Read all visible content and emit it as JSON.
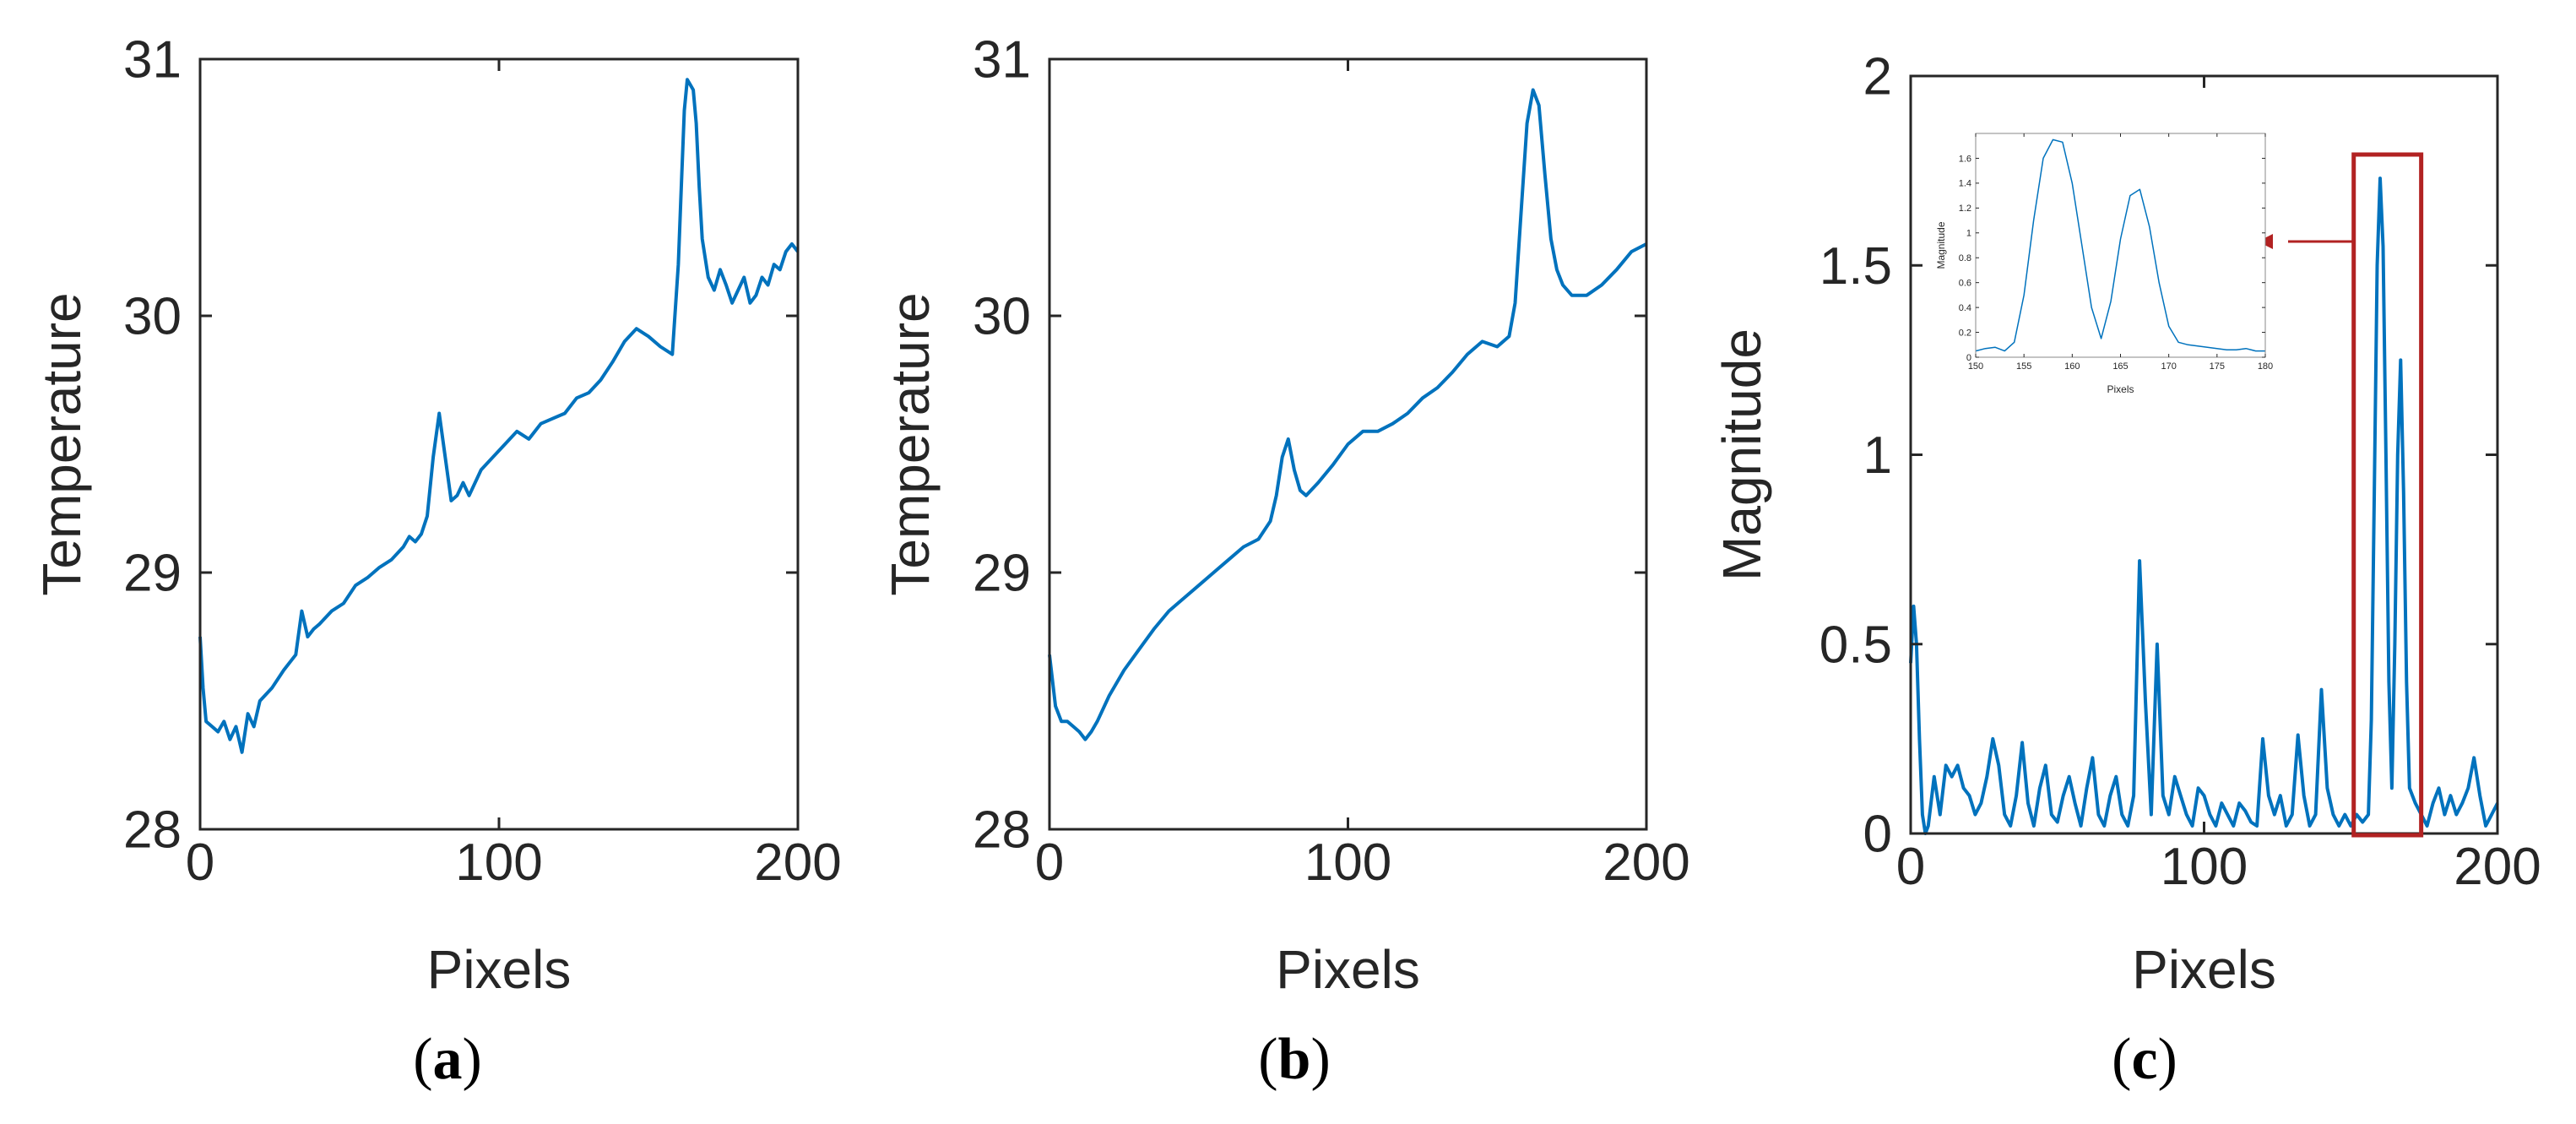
{
  "colors": {
    "line": "#0072BD",
    "axis": "#262626",
    "highlight": "#B22222"
  },
  "captions": {
    "a": "a",
    "b": "b",
    "c": "c"
  },
  "chart_data": [
    {
      "type": "line",
      "panel": "a",
      "xlabel": "Pixels",
      "ylabel": "Temperature",
      "xlim": [
        0,
        200
      ],
      "ylim": [
        28,
        31
      ],
      "xticks": [
        "0",
        "100",
        "200"
      ],
      "yticks": [
        "28",
        "29",
        "30",
        "31"
      ],
      "grid": false,
      "x": [
        0,
        1,
        2,
        4,
        6,
        8,
        10,
        12,
        14,
        16,
        18,
        20,
        24,
        28,
        32,
        34,
        36,
        38,
        40,
        44,
        48,
        52,
        56,
        60,
        64,
        68,
        70,
        72,
        74,
        76,
        78,
        80,
        82,
        84,
        86,
        88,
        90,
        94,
        98,
        102,
        106,
        110,
        114,
        118,
        122,
        126,
        130,
        134,
        138,
        142,
        146,
        150,
        154,
        158,
        160,
        161,
        162,
        163,
        164,
        165,
        166,
        167,
        168,
        170,
        172,
        174,
        176,
        178,
        180,
        182,
        184,
        186,
        188,
        190,
        192,
        194,
        196,
        198,
        200
      ],
      "values": [
        28.75,
        28.55,
        28.42,
        28.4,
        28.38,
        28.42,
        28.35,
        28.4,
        28.3,
        28.45,
        28.4,
        28.5,
        28.55,
        28.62,
        28.68,
        28.85,
        28.75,
        28.78,
        28.8,
        28.85,
        28.88,
        28.95,
        28.98,
        29.02,
        29.05,
        29.1,
        29.14,
        29.12,
        29.15,
        29.22,
        29.45,
        29.62,
        29.45,
        29.28,
        29.3,
        29.35,
        29.3,
        29.4,
        29.45,
        29.5,
        29.55,
        29.52,
        29.58,
        29.6,
        29.62,
        29.68,
        29.7,
        29.75,
        29.82,
        29.9,
        29.95,
        29.92,
        29.88,
        29.85,
        30.2,
        30.5,
        30.8,
        30.92,
        30.9,
        30.88,
        30.75,
        30.5,
        30.3,
        30.15,
        30.1,
        30.18,
        30.12,
        30.05,
        30.1,
        30.15,
        30.05,
        30.08,
        30.15,
        30.12,
        30.2,
        30.18,
        30.25,
        30.28,
        30.25
      ]
    },
    {
      "type": "line",
      "panel": "b",
      "xlabel": "Pixels",
      "ylabel": "Temperature",
      "xlim": [
        0,
        200
      ],
      "ylim": [
        28,
        31
      ],
      "xticks": [
        "0",
        "100",
        "200"
      ],
      "yticks": [
        "28",
        "29",
        "30",
        "31"
      ],
      "grid": false,
      "x": [
        0,
        2,
        4,
        6,
        8,
        10,
        12,
        14,
        16,
        20,
        25,
        30,
        35,
        40,
        45,
        50,
        55,
        60,
        65,
        70,
        74,
        76,
        78,
        80,
        82,
        84,
        86,
        90,
        95,
        100,
        105,
        110,
        115,
        120,
        125,
        130,
        135,
        140,
        145,
        150,
        154,
        156,
        158,
        160,
        162,
        164,
        166,
        168,
        170,
        172,
        175,
        180,
        185,
        190,
        195,
        200
      ],
      "values": [
        28.68,
        28.48,
        28.42,
        28.42,
        28.4,
        28.38,
        28.35,
        28.38,
        28.42,
        28.52,
        28.62,
        28.7,
        28.78,
        28.85,
        28.9,
        28.95,
        29.0,
        29.05,
        29.1,
        29.13,
        29.2,
        29.3,
        29.45,
        29.52,
        29.4,
        29.32,
        29.3,
        29.35,
        29.42,
        29.5,
        29.55,
        29.55,
        29.58,
        29.62,
        29.68,
        29.72,
        29.78,
        29.85,
        29.9,
        29.88,
        29.92,
        30.05,
        30.4,
        30.75,
        30.88,
        30.82,
        30.55,
        30.3,
        30.18,
        30.12,
        30.08,
        30.08,
        30.12,
        30.18,
        30.25,
        30.28
      ]
    },
    {
      "type": "line",
      "panel": "c",
      "xlabel": "Pixels",
      "ylabel": "Magnitude",
      "xlim": [
        0,
        200
      ],
      "ylim": [
        0,
        2
      ],
      "xticks": [
        "0",
        "100",
        "200"
      ],
      "yticks": [
        "0",
        "0.5",
        "1",
        "1.5",
        "2"
      ],
      "grid": false,
      "highlight_range": [
        151,
        174
      ],
      "x": [
        0,
        1,
        2,
        3,
        4,
        5,
        6,
        8,
        10,
        12,
        14,
        16,
        18,
        20,
        22,
        24,
        26,
        28,
        30,
        32,
        34,
        36,
        38,
        40,
        42,
        44,
        46,
        48,
        50,
        52,
        54,
        56,
        58,
        60,
        62,
        64,
        66,
        68,
        70,
        72,
        74,
        76,
        78,
        80,
        82,
        84,
        86,
        88,
        90,
        92,
        94,
        96,
        98,
        100,
        102,
        104,
        106,
        108,
        110,
        112,
        114,
        116,
        118,
        120,
        122,
        124,
        126,
        128,
        130,
        132,
        134,
        136,
        138,
        140,
        142,
        144,
        146,
        148,
        150,
        152,
        154,
        156,
        157,
        158,
        159,
        160,
        161,
        162,
        163,
        164,
        165,
        166,
        167,
        168,
        169,
        170,
        172,
        174,
        176,
        178,
        180,
        182,
        184,
        186,
        188,
        190,
        192,
        194,
        196,
        198,
        200
      ],
      "values": [
        0.45,
        0.6,
        0.5,
        0.25,
        0.05,
        0.0,
        0.02,
        0.15,
        0.05,
        0.18,
        0.15,
        0.18,
        0.12,
        0.1,
        0.05,
        0.08,
        0.15,
        0.25,
        0.18,
        0.05,
        0.02,
        0.1,
        0.24,
        0.08,
        0.02,
        0.12,
        0.18,
        0.05,
        0.03,
        0.1,
        0.15,
        0.08,
        0.02,
        0.12,
        0.2,
        0.05,
        0.02,
        0.1,
        0.15,
        0.05,
        0.02,
        0.1,
        0.72,
        0.35,
        0.05,
        0.5,
        0.1,
        0.05,
        0.15,
        0.1,
        0.05,
        0.02,
        0.12,
        0.1,
        0.05,
        0.02,
        0.08,
        0.05,
        0.02,
        0.08,
        0.06,
        0.03,
        0.02,
        0.25,
        0.1,
        0.05,
        0.1,
        0.02,
        0.05,
        0.26,
        0.1,
        0.02,
        0.05,
        0.38,
        0.12,
        0.05,
        0.02,
        0.05,
        0.02,
        0.05,
        0.03,
        0.05,
        0.3,
        0.9,
        1.5,
        1.73,
        1.55,
        1.0,
        0.4,
        0.12,
        0.5,
        1.0,
        1.25,
        0.9,
        0.4,
        0.12,
        0.08,
        0.05,
        0.02,
        0.08,
        0.12,
        0.05,
        0.1,
        0.05,
        0.08,
        0.12,
        0.2,
        0.1,
        0.02,
        0.05,
        0.08
      ]
    },
    {
      "type": "line",
      "panel": "c-inset",
      "xlabel": "Pixels",
      "ylabel": "Magnitude",
      "xlim": [
        150,
        180
      ],
      "ylim": [
        0,
        1.8
      ],
      "xticks": [
        "150",
        "155",
        "160",
        "165",
        "170",
        "175",
        "180"
      ],
      "yticks": [
        "0",
        "0.2",
        "0.4",
        "0.6",
        "0.8",
        "1",
        "1.2",
        "1.4",
        "1.6"
      ],
      "grid": false,
      "x": [
        150,
        151,
        152,
        153,
        154,
        155,
        156,
        157,
        158,
        159,
        160,
        161,
        162,
        163,
        164,
        165,
        166,
        167,
        168,
        169,
        170,
        171,
        172,
        173,
        174,
        175,
        176,
        177,
        178,
        179,
        180
      ],
      "values": [
        0.05,
        0.07,
        0.08,
        0.05,
        0.12,
        0.5,
        1.1,
        1.6,
        1.75,
        1.73,
        1.4,
        0.9,
        0.4,
        0.15,
        0.45,
        0.95,
        1.3,
        1.35,
        1.05,
        0.6,
        0.25,
        0.12,
        0.1,
        0.09,
        0.08,
        0.07,
        0.06,
        0.06,
        0.07,
        0.05,
        0.05
      ]
    }
  ]
}
